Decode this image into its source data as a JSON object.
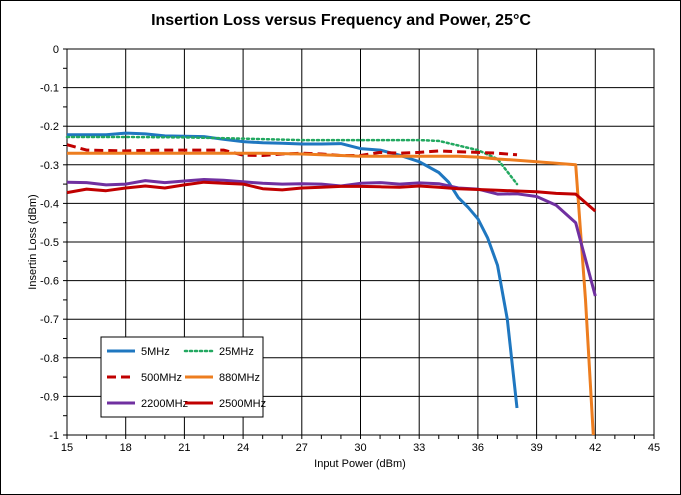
{
  "chart_data": {
    "type": "line",
    "title": "Insertion Loss versus Frequency and Power, 25°C",
    "xlabel": "Input Power (dBm)",
    "ylabel": "Insertin Loss (dBm)",
    "xlim": [
      15,
      45
    ],
    "ylim": [
      -1,
      0
    ],
    "xticks": [
      15,
      18,
      21,
      24,
      27,
      30,
      33,
      36,
      39,
      42,
      45
    ],
    "xtick_labels": [
      "15",
      "18",
      "21",
      "24",
      "27",
      "30",
      "33",
      "36",
      "39",
      "42",
      "45"
    ],
    "yticks": [
      0,
      -0.1,
      -0.2,
      -0.3,
      -0.4,
      -0.5,
      -0.6,
      -0.7,
      -0.8,
      -0.9,
      -1
    ],
    "ytick_labels": [
      "0",
      "-0.1",
      "-0.2",
      "-0.3",
      "-0.4",
      "-0.5",
      "-0.6",
      "-0.7",
      "-0.8",
      "-0.9",
      "-1"
    ],
    "grid": true,
    "legend_position": "bottom-left",
    "series": [
      {
        "name": "5MHz",
        "color": "#1F77C0",
        "dash": "solid",
        "x": [
          15,
          16,
          17,
          18,
          19,
          20,
          21,
          22,
          23,
          24,
          25,
          26,
          27,
          28,
          29,
          30,
          31,
          32,
          33,
          34,
          34.5,
          35,
          35.5,
          36,
          36.5,
          37,
          37.5,
          38
        ],
        "y": [
          -0.222,
          -0.222,
          -0.222,
          -0.218,
          -0.22,
          -0.225,
          -0.226,
          -0.227,
          -0.234,
          -0.24,
          -0.243,
          -0.244,
          -0.246,
          -0.246,
          -0.245,
          -0.258,
          -0.262,
          -0.275,
          -0.292,
          -0.32,
          -0.345,
          -0.385,
          -0.41,
          -0.44,
          -0.49,
          -0.56,
          -0.7,
          -0.93
        ]
      },
      {
        "name": "25MHz",
        "color": "#22A860",
        "dash": "dotted",
        "x": [
          15,
          18,
          21,
          24,
          27,
          30,
          33,
          34,
          35,
          36,
          37,
          38
        ],
        "y": [
          -0.228,
          -0.228,
          -0.229,
          -0.232,
          -0.236,
          -0.236,
          -0.236,
          -0.238,
          -0.25,
          -0.262,
          -0.285,
          -0.35
        ]
      },
      {
        "name": "500MHz",
        "color": "#C00000",
        "dash": "dashed",
        "x": [
          15,
          16,
          18,
          20,
          22,
          23,
          24,
          25,
          26,
          27,
          28,
          29,
          30,
          31,
          32,
          33,
          34,
          35,
          36,
          37,
          38
        ],
        "y": [
          -0.248,
          -0.262,
          -0.264,
          -0.262,
          -0.262,
          -0.262,
          -0.275,
          -0.276,
          -0.272,
          -0.27,
          -0.272,
          -0.276,
          -0.276,
          -0.268,
          -0.27,
          -0.268,
          -0.264,
          -0.266,
          -0.268,
          -0.27,
          -0.274
        ]
      },
      {
        "name": "880MHz",
        "color": "#ED7D1F",
        "dash": "solid",
        "x": [
          15,
          24,
          25,
          26,
          27,
          28,
          29,
          30,
          31,
          32,
          33,
          34,
          35,
          36,
          37,
          38,
          39,
          40,
          41,
          41.5,
          41.9
        ],
        "y": [
          -0.27,
          -0.27,
          -0.27,
          -0.271,
          -0.272,
          -0.274,
          -0.276,
          -0.278,
          -0.278,
          -0.278,
          -0.278,
          -0.278,
          -0.278,
          -0.28,
          -0.285,
          -0.288,
          -0.292,
          -0.296,
          -0.3,
          -0.65,
          -1.0
        ]
      },
      {
        "name": "2200MHz",
        "color": "#7030A0",
        "dash": "solid",
        "x": [
          15,
          16,
          17,
          18,
          19,
          20,
          21,
          22,
          23,
          24,
          25,
          26,
          27,
          28,
          29,
          30,
          31,
          32,
          33,
          34,
          35,
          36,
          37,
          38,
          39,
          40,
          41,
          42
        ],
        "y": [
          -0.345,
          -0.346,
          -0.352,
          -0.35,
          -0.341,
          -0.346,
          -0.342,
          -0.338,
          -0.34,
          -0.344,
          -0.348,
          -0.35,
          -0.349,
          -0.35,
          -0.355,
          -0.348,
          -0.346,
          -0.35,
          -0.347,
          -0.349,
          -0.36,
          -0.363,
          -0.376,
          -0.375,
          -0.382,
          -0.405,
          -0.45,
          -0.64
        ]
      },
      {
        "name": "2500MHz",
        "color": "#C00000",
        "dash": "solid",
        "x": [
          15,
          16,
          17,
          18,
          19,
          20,
          21,
          22,
          23,
          24,
          25,
          26,
          27,
          28,
          29,
          30,
          31,
          32,
          33,
          34,
          35,
          36,
          37,
          38,
          39,
          40,
          41,
          42
        ],
        "y": [
          -0.372,
          -0.363,
          -0.367,
          -0.36,
          -0.355,
          -0.36,
          -0.352,
          -0.345,
          -0.348,
          -0.35,
          -0.362,
          -0.365,
          -0.36,
          -0.358,
          -0.356,
          -0.356,
          -0.357,
          -0.358,
          -0.355,
          -0.358,
          -0.362,
          -0.364,
          -0.366,
          -0.368,
          -0.37,
          -0.374,
          -0.376,
          -0.42
        ]
      }
    ]
  }
}
